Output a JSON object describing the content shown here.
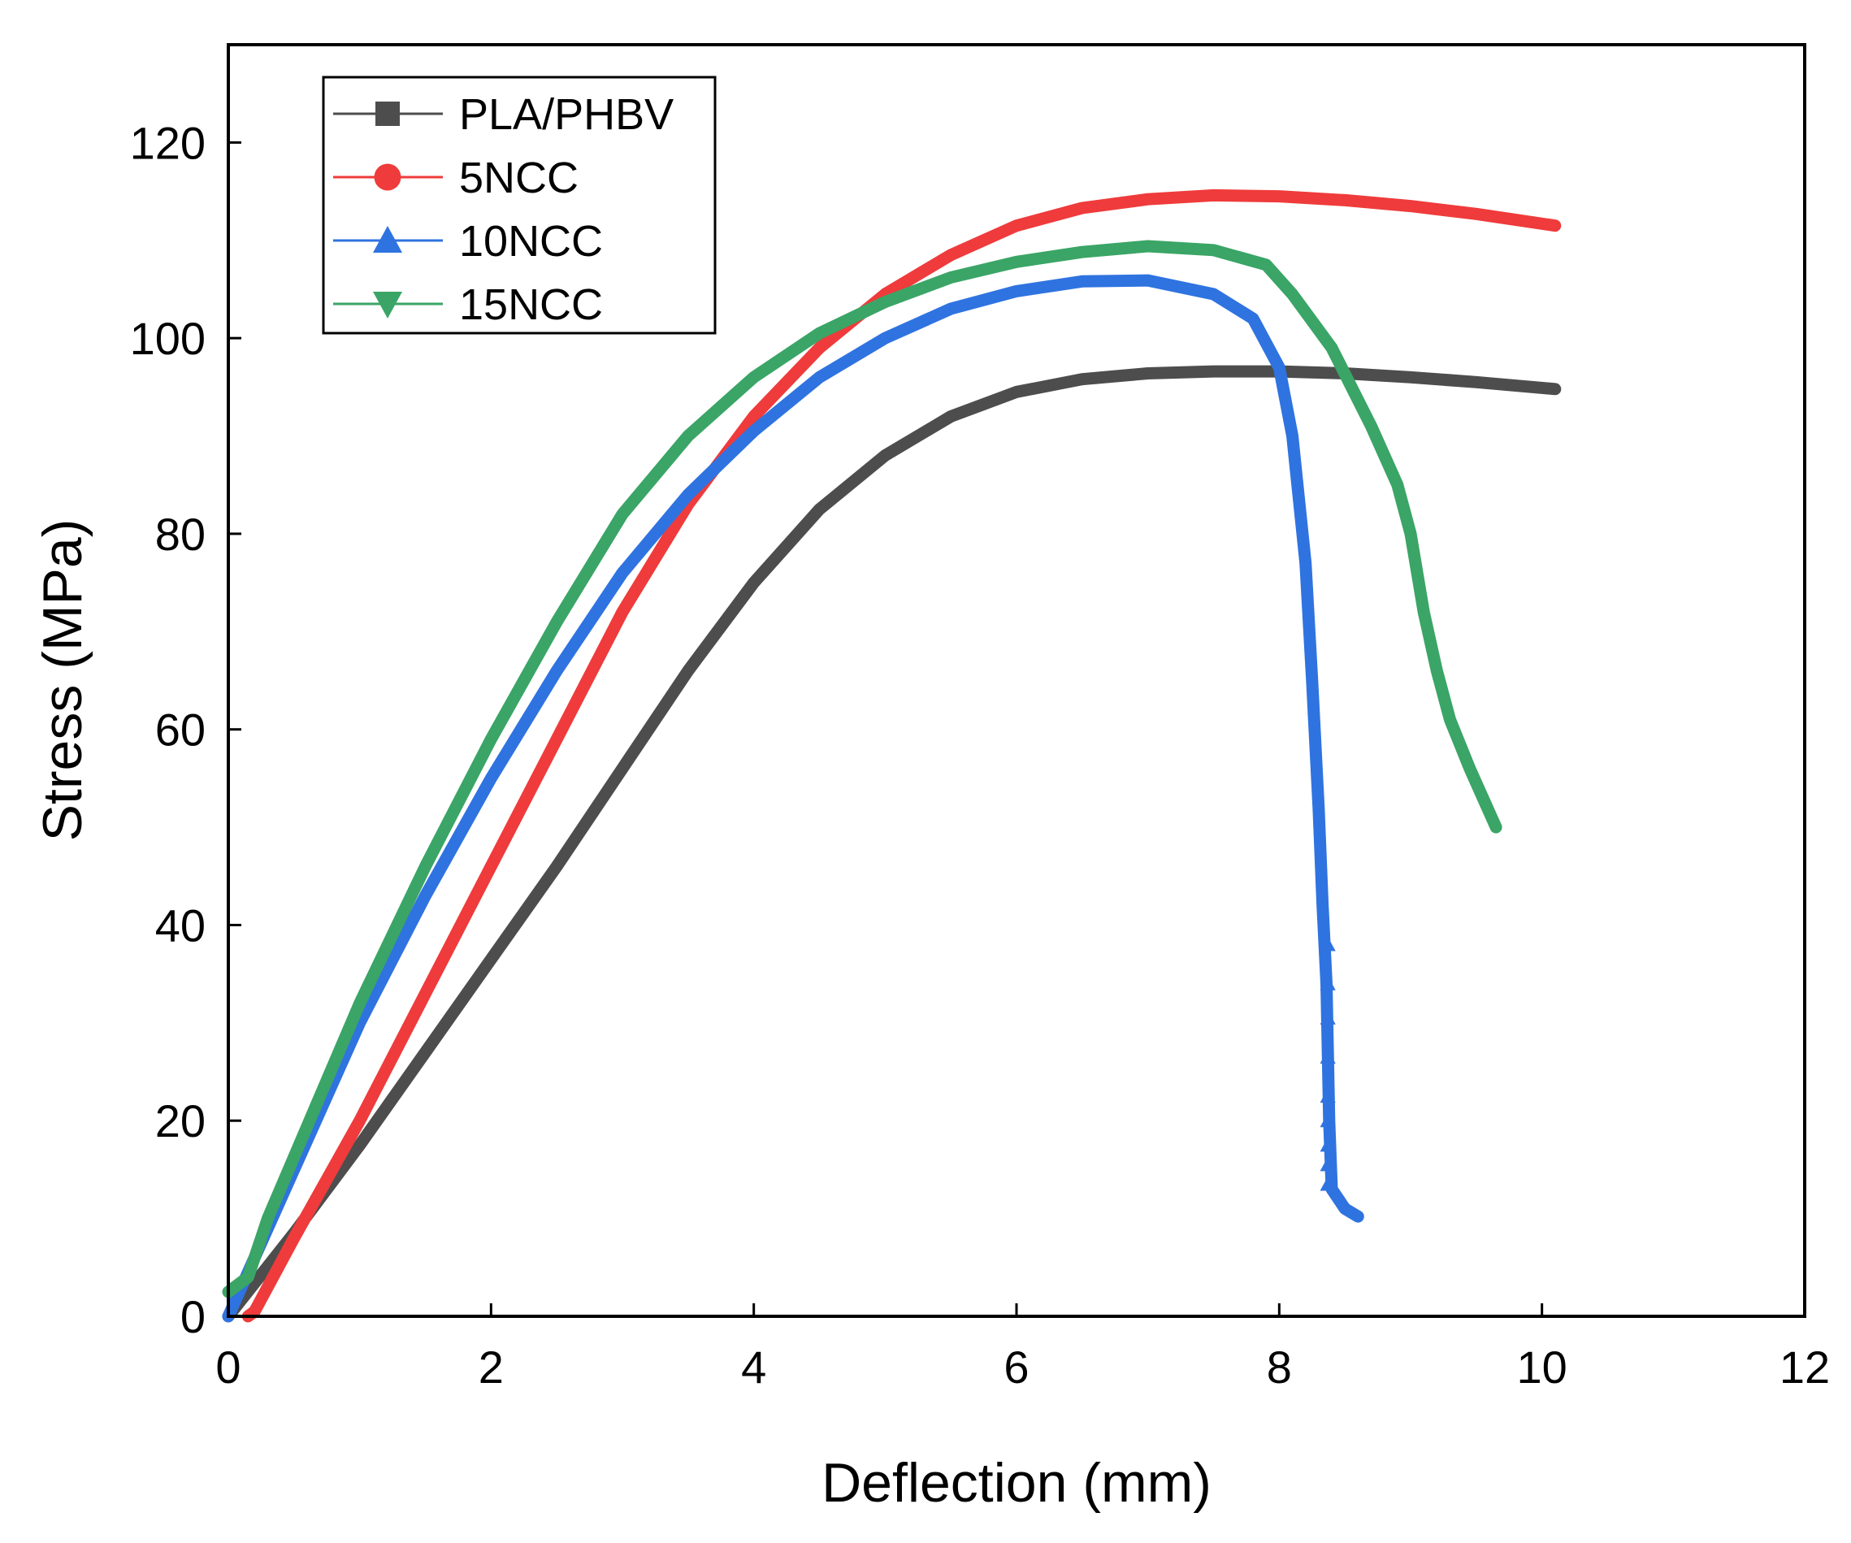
{
  "chart_data": {
    "type": "line",
    "title": "",
    "xlabel": "Deflection (mm)",
    "ylabel": "Stress (MPa)",
    "xlim": [
      0,
      12
    ],
    "ylim": [
      0,
      130
    ],
    "xticks": [
      0,
      2,
      4,
      6,
      8,
      10,
      12
    ],
    "yticks": [
      0,
      20,
      40,
      60,
      80,
      100,
      120
    ],
    "grid": false,
    "legend_position": "top-left",
    "series": [
      {
        "name": "PLA/PHBV",
        "color": "#4d4d4d",
        "marker": "square",
        "x": [
          0,
          0.5,
          1.0,
          1.5,
          2.0,
          2.5,
          3.0,
          3.5,
          4.0,
          4.5,
          5.0,
          5.5,
          6.0,
          6.5,
          7.0,
          7.5,
          8.0,
          8.5,
          9.0,
          9.5,
          10.1
        ],
        "y": [
          0,
          8.5,
          17.5,
          27,
          36.5,
          46,
          56,
          66,
          75,
          82.5,
          88,
          92,
          94.5,
          95.8,
          96.4,
          96.6,
          96.6,
          96.4,
          96.0,
          95.5,
          94.8
        ]
      },
      {
        "name": "5NCC",
        "color": "#ef3b3b",
        "marker": "circle",
        "x": [
          0.15,
          0.2,
          0.5,
          1.0,
          1.5,
          2.0,
          2.5,
          3.0,
          3.5,
          4.0,
          4.5,
          5.0,
          5.5,
          6.0,
          6.5,
          7.0,
          7.5,
          8.0,
          8.5,
          9.0,
          9.5,
          10.1
        ],
        "y": [
          0,
          0.5,
          8,
          20,
          33,
          46,
          59,
          72,
          83,
          92,
          99,
          104.5,
          108.5,
          111.5,
          113.3,
          114.2,
          114.6,
          114.5,
          114.1,
          113.5,
          112.7,
          111.5
        ]
      },
      {
        "name": "10NCC",
        "color": "#2f73e0",
        "marker": "triangle-up",
        "x": [
          0,
          0.3,
          1.0,
          1.5,
          2.0,
          2.5,
          3.0,
          3.5,
          4.0,
          4.5,
          5.0,
          5.5,
          6.0,
          6.5,
          7.0,
          7.5,
          7.8,
          8.0,
          8.1,
          8.2,
          8.25,
          8.3,
          8.33,
          8.36,
          8.38,
          8.4,
          8.5,
          8.6
        ],
        "y": [
          0,
          9,
          30,
          43,
          55,
          66,
          76,
          84,
          90.5,
          96,
          100,
          103,
          104.8,
          105.8,
          105.9,
          104.5,
          102,
          97,
          90,
          77,
          65,
          52,
          42,
          34,
          20,
          13,
          11,
          10.2
        ]
      },
      {
        "name": "15NCC",
        "color": "#3aa566",
        "marker": "triangle-down",
        "x": [
          0,
          0.15,
          0.3,
          1.0,
          1.5,
          2.0,
          2.5,
          3.0,
          3.5,
          4.0,
          4.5,
          5.0,
          5.5,
          6.0,
          6.5,
          7.0,
          7.5,
          7.9,
          8.1,
          8.4,
          8.7,
          8.9,
          9.0,
          9.1,
          9.2,
          9.3,
          9.45,
          9.65
        ],
        "y": [
          2.5,
          4,
          10,
          32,
          46,
          59,
          71,
          82,
          90,
          96,
          100.5,
          103.7,
          106.2,
          107.8,
          108.8,
          109.4,
          109,
          107.5,
          104.5,
          99,
          91,
          85,
          80,
          72,
          66,
          61,
          56,
          50
        ]
      }
    ]
  }
}
